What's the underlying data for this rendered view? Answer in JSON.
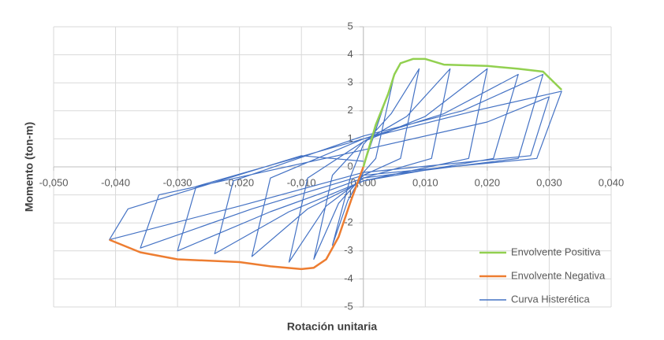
{
  "chart_data": {
    "type": "line",
    "x_label": "Rotación unitaria",
    "y_label": "Momento (ton-m)",
    "xlim": [
      -0.05,
      0.04
    ],
    "ylim": [
      -5,
      5
    ],
    "xticks": [
      {
        "value": -0.05,
        "label": "-0,050"
      },
      {
        "value": -0.04,
        "label": "-0,040"
      },
      {
        "value": -0.03,
        "label": "-0,030"
      },
      {
        "value": -0.02,
        "label": "-0,020"
      },
      {
        "value": -0.01,
        "label": "-0,010"
      },
      {
        "value": 0,
        "label": "0,000"
      },
      {
        "value": 0.01,
        "label": "0,010"
      },
      {
        "value": 0.02,
        "label": "0,020"
      },
      {
        "value": 0.03,
        "label": "0,030"
      },
      {
        "value": 0.04,
        "label": "0,040"
      }
    ],
    "yticks": [
      5,
      4,
      3,
      2,
      1,
      0,
      -1,
      -2,
      -3,
      -4,
      -5
    ],
    "grid": true,
    "legend": "bottom-right",
    "series": [
      {
        "name": "Envolvente Positiva",
        "color": "#92d050",
        "width": 2.5,
        "x": [
          0,
          0.002,
          0.004,
          0.005,
          0.006,
          0.008,
          0.01,
          0.013,
          0.02,
          0.025,
          0.029,
          0.032
        ],
        "values": [
          0,
          1.5,
          2.6,
          3.3,
          3.7,
          3.85,
          3.85,
          3.65,
          3.6,
          3.5,
          3.4,
          2.75
        ]
      },
      {
        "name": "Envolvente Negativa",
        "color": "#ed7d31",
        "width": 2.5,
        "x": [
          0,
          -0.002,
          -0.004,
          -0.006,
          -0.008,
          -0.01,
          -0.015,
          -0.02,
          -0.03,
          -0.036,
          -0.041
        ],
        "values": [
          0,
          -1.2,
          -2.5,
          -3.3,
          -3.6,
          -3.65,
          -3.55,
          -3.4,
          -3.3,
          -3.05,
          -2.6
        ]
      },
      {
        "name": "Curva Histerética",
        "color": "#4472c4",
        "width": 1.2,
        "x": [
          0,
          0.005,
          0.002,
          0,
          -0.0025,
          -0.005,
          -0.002,
          0,
          0.0045,
          0.009,
          0.006,
          0,
          -0.004,
          -0.008,
          -0.005,
          0,
          0.007,
          0.014,
          0.011,
          0,
          -0.006,
          -0.012,
          -0.009,
          0,
          0.01,
          0.02,
          0.017,
          0,
          -0.009,
          -0.018,
          -0.015,
          0,
          0.013,
          0.025,
          0.021,
          0,
          -0.012,
          -0.024,
          -0.021,
          0,
          0.016,
          0.029,
          0.025,
          0,
          -0.015,
          -0.03,
          -0.027,
          0,
          0.018,
          0.032,
          0.028,
          0,
          -0.018,
          -0.036,
          -0.033,
          0,
          0.02,
          0.03,
          0.027,
          0,
          -0.02,
          -0.041,
          -0.038,
          -0.01,
          0
        ],
        "values": [
          0,
          3.3,
          0.3,
          -0.2,
          -1.2,
          -2.8,
          -0.3,
          0.8,
          1.9,
          3.5,
          0.3,
          -0.3,
          -1.3,
          -3.3,
          -0.3,
          0.9,
          1.8,
          3.5,
          0.3,
          -0.4,
          -1.4,
          -3.4,
          -0.4,
          0.9,
          1.8,
          3.5,
          0.3,
          -0.5,
          -1.5,
          -3.2,
          -0.4,
          1.0,
          1.9,
          3.3,
          0.3,
          -0.5,
          -1.6,
          -3.1,
          -0.5,
          1.1,
          2.0,
          3.3,
          0.3,
          -0.4,
          -1.6,
          -3.0,
          -0.7,
          1.0,
          2.0,
          2.7,
          0.3,
          -0.3,
          -1.5,
          -2.9,
          -1.0,
          0.6,
          1.6,
          2.5,
          0.4,
          -0.2,
          -1.4,
          -2.6,
          -1.5,
          0.4,
          0.2
        ]
      }
    ]
  }
}
